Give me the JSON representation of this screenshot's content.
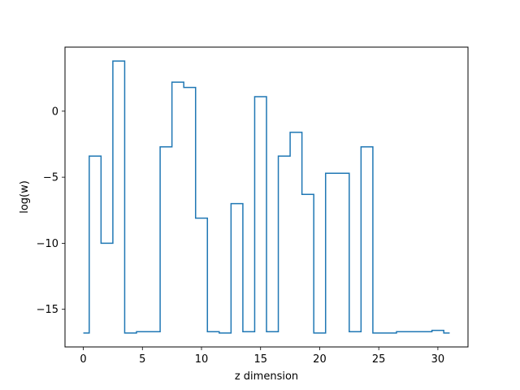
{
  "chart_data": {
    "type": "step",
    "step_where": "mid",
    "title": "",
    "xlabel": "z dimension",
    "ylabel": "log(w)",
    "xlim": [
      -1.55,
      32.55
    ],
    "ylim": [
      -17.85,
      4.85
    ],
    "xticks": [
      0,
      5,
      10,
      15,
      20,
      25,
      30
    ],
    "xtick_labels": [
      "0",
      "5",
      "10",
      "15",
      "20",
      "25",
      "30"
    ],
    "yticks": [
      -15,
      -10,
      -5,
      0
    ],
    "ytick_labels": [
      "−15",
      "−10",
      "−5",
      "0"
    ],
    "grid": false,
    "legend": "none",
    "color": "#1f77b4",
    "series": [
      {
        "x": [
          0,
          1,
          2,
          3,
          4,
          5,
          6,
          7,
          8,
          9,
          10,
          11,
          12,
          13,
          14,
          15,
          16,
          17,
          18,
          19,
          20,
          21,
          22,
          23,
          24,
          25,
          26,
          27,
          28,
          29,
          30,
          31
        ],
        "y": [
          -16.8,
          -3.4,
          -10.0,
          3.8,
          -16.8,
          -16.7,
          -16.7,
          -2.7,
          2.2,
          1.8,
          -8.1,
          -16.7,
          -16.8,
          -7.0,
          -16.7,
          1.1,
          -16.7,
          -3.4,
          -1.6,
          -6.3,
          -16.8,
          -4.7,
          -4.7,
          -16.7,
          -2.7,
          -16.8,
          -16.8,
          -16.7,
          -16.7,
          -16.7,
          -16.6,
          -16.8
        ]
      }
    ]
  }
}
